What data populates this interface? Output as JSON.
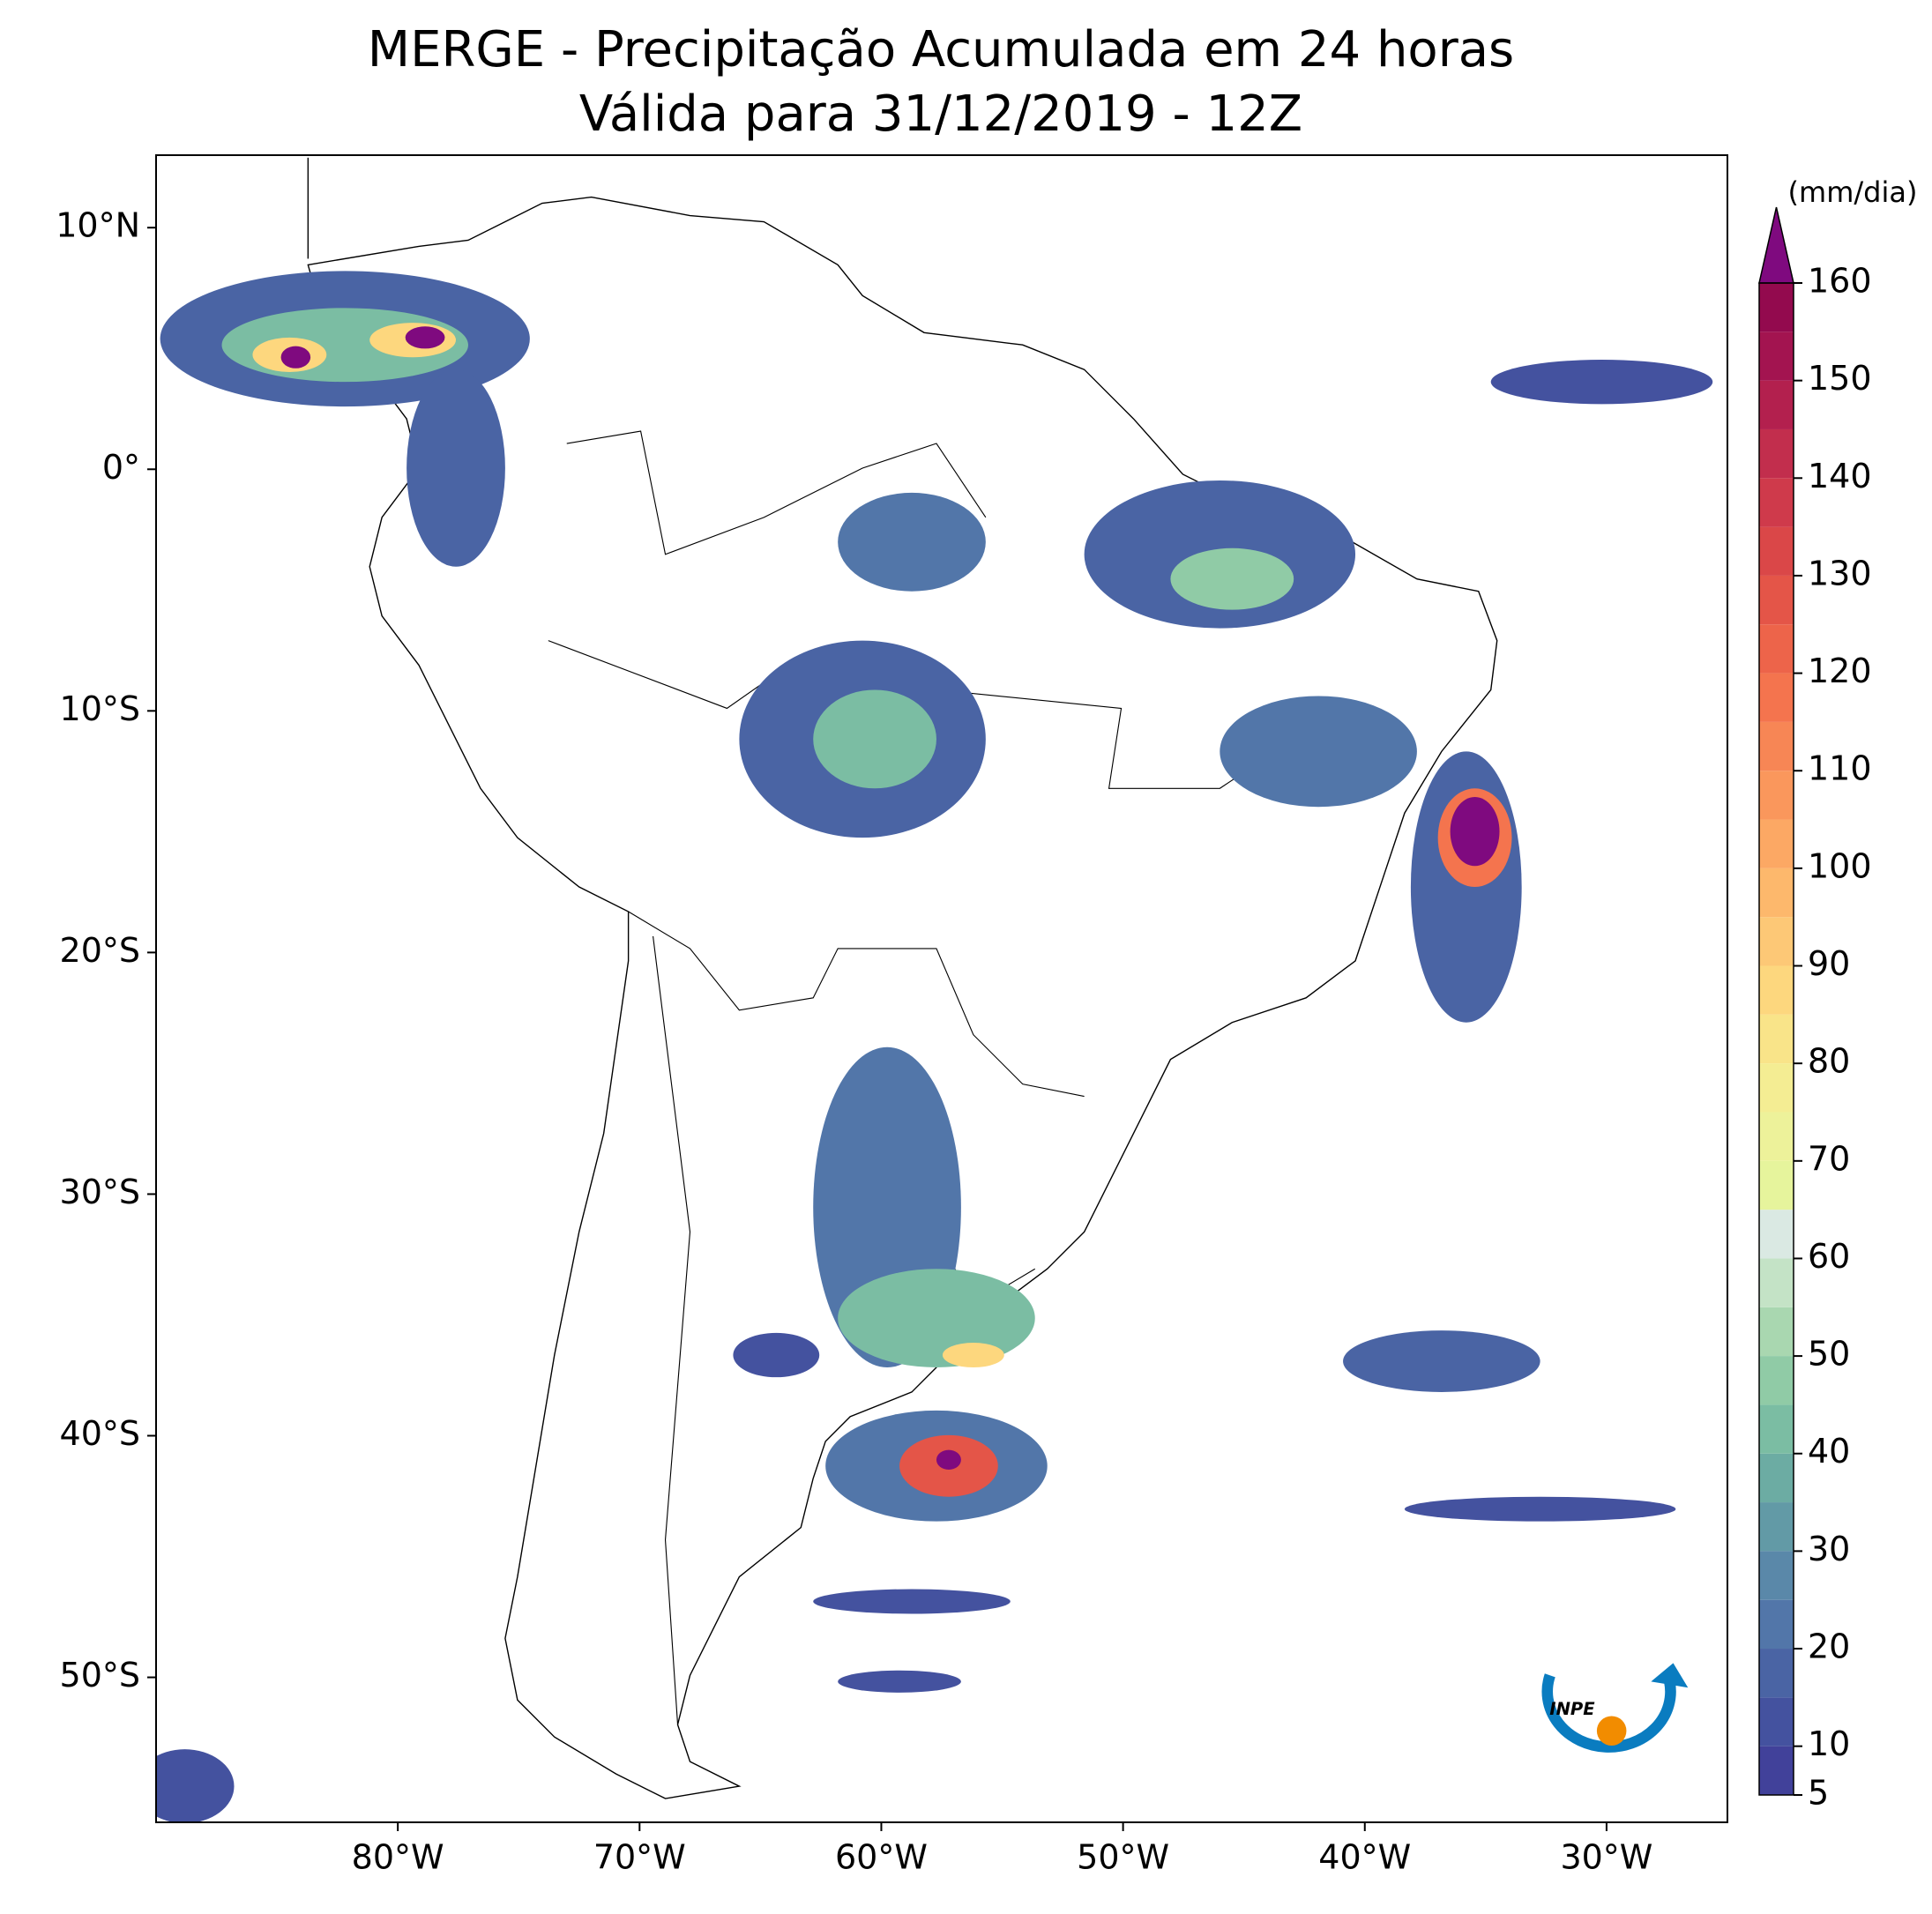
{
  "title": "MERGE - Precipitação Acumulada em 24 horas",
  "subtitle": "Válida para 31/12/2019 - 12Z",
  "map": {
    "xlim": [
      -90,
      -25
    ],
    "ylim": [
      -56,
      13
    ],
    "xticks": [
      {
        "value": -80,
        "label": "80°W"
      },
      {
        "value": -70,
        "label": "70°W"
      },
      {
        "value": -60,
        "label": "60°W"
      },
      {
        "value": -50,
        "label": "50°W"
      },
      {
        "value": -40,
        "label": "40°W"
      },
      {
        "value": -30,
        "label": "30°W"
      }
    ],
    "yticks": [
      {
        "value": 10,
        "label": "10°N"
      },
      {
        "value": 0,
        "label": "0°"
      },
      {
        "value": -10,
        "label": "10°S"
      },
      {
        "value": -20,
        "label": "20°S"
      },
      {
        "value": -30,
        "label": "30°S"
      },
      {
        "value": -40,
        "label": "40°S"
      },
      {
        "value": -50,
        "label": "50°S"
      }
    ]
  },
  "colorbar": {
    "label": "(mm/dia)",
    "levels": [
      5,
      10,
      15,
      20,
      25,
      30,
      35,
      40,
      45,
      50,
      55,
      60,
      65,
      70,
      75,
      80,
      85,
      90,
      95,
      100,
      105,
      110,
      115,
      120,
      125,
      130,
      135,
      140,
      145,
      150,
      155,
      160
    ],
    "colors": [
      "#41419a",
      "#44529f",
      "#4a64a4",
      "#5276a9",
      "#5a88a9",
      "#629aa6",
      "#6caca3",
      "#7bbda3",
      "#90cba6",
      "#a9d7b0",
      "#c4e3c6",
      "#dae9e3",
      "#e6f49c",
      "#edf29a",
      "#f4ed93",
      "#f9e489",
      "#fdd77e",
      "#fdc876",
      "#fdb86c",
      "#fca864",
      "#fa975c",
      "#f78655",
      "#f4744e",
      "#ed644a",
      "#e45548",
      "#da4748",
      "#cf3a4b",
      "#c22e4d",
      "#b3204e",
      "#a31450",
      "#930a4e"
    ],
    "over_color": "#7f0a7f",
    "ticks": [
      5,
      10,
      20,
      30,
      40,
      50,
      60,
      70,
      80,
      90,
      100,
      110,
      120,
      130,
      140,
      150,
      160
    ]
  },
  "logo_text": "INPE"
}
